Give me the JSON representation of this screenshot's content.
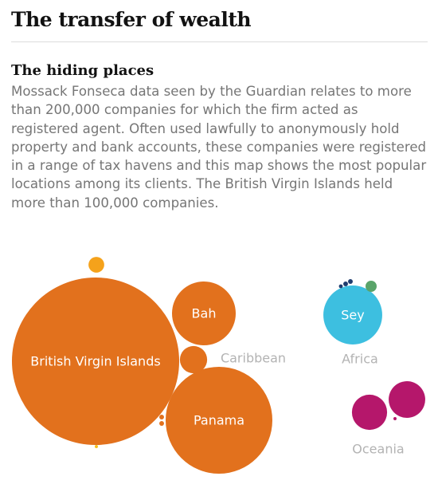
{
  "chart_data": {
    "type": "bubble",
    "title": "The transfer of wealth",
    "subtitle": "The hiding places",
    "description": "Mossack Fonseca data seen by the Guardian relates to more than 200,000 companies for which the firm acted as registered agent. Often used lawfully to anonymously hold property and bank accounts, these companies were registered in a range of tax havens and this map shows the most popular locations among its clients. The British Virgin Islands held more than 100,000 companies.",
    "groups": [
      {
        "name": "Caribbean",
        "bubbles": [
          {
            "name": "British Virgin Islands",
            "value": 113000,
            "color": "#e2711d"
          },
          {
            "name": "Panama",
            "value": 46000,
            "color": "#e2711d"
          },
          {
            "name": "Bah",
            "value": 16400,
            "color": "#e2711d"
          },
          {
            "name": null,
            "value": 3000,
            "color": "#e2711d"
          },
          {
            "name": null,
            "value": 1000,
            "color": "#f5a21b"
          },
          {
            "name": null,
            "value": 90,
            "color": "#e2711d"
          },
          {
            "name": null,
            "value": 90,
            "color": "#e2711d"
          },
          {
            "name": null,
            "value": 40,
            "color": "#f5c01b"
          }
        ]
      },
      {
        "name": "Africa",
        "bubbles": [
          {
            "name": "Sey",
            "value": 14000,
            "color": "#3dbfe0"
          },
          {
            "name": null,
            "value": 500,
            "color": "#5aa46a"
          },
          {
            "name": null,
            "value": 90,
            "color": "#1f3c6e"
          },
          {
            "name": null,
            "value": 90,
            "color": "#1f3c6e"
          },
          {
            "name": null,
            "value": 60,
            "color": "#1f3c6e"
          }
        ]
      },
      {
        "name": "Oceania",
        "bubbles": [
          {
            "name": null,
            "value": 5400,
            "color": "#b5176b"
          },
          {
            "name": null,
            "value": 5000,
            "color": "#b5176b"
          },
          {
            "name": null,
            "value": 40,
            "color": "#b5176b"
          }
        ]
      }
    ]
  }
}
